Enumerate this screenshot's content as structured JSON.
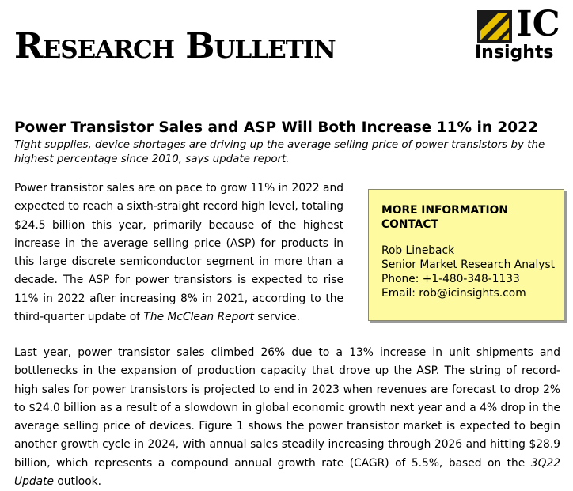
{
  "masthead": {
    "title": "Research Bulletin"
  },
  "logo": {
    "mark": "IC",
    "name": "Insights",
    "colors": {
      "gold": "#e8c000",
      "dark": "#1a1a1a"
    }
  },
  "article": {
    "headline": "Power Transistor Sales and ASP Will Both Increase 11% in 2022",
    "subhead": "Tight supplies, device shortages are driving up the average selling price of power transistors by the highest percentage since 2010, says update report.",
    "paragraph1_main": "Power transistor sales are on pace to grow 11% in 2022 and expected to reach a sixth-straight record high level, totaling $24.5 billion this year, primarily because of the highest increase in the average selling price (ASP) for products in this large discrete semiconductor segment in more than a decade.  The ASP for power transistors is expected to rise 11% in 2022 after increasing 8% in 2021, according to the third-quarter update of ",
    "paragraph1_publication": "The McClean Report",
    "paragraph1_end": " service.",
    "paragraph2_main": "Last year, power transistor sales climbed 26% due to a 13% increase in unit shipments and bottlenecks in the expansion of production capacity that drove up the ASP.  The string of record-high sales for power transistors is projected to end in 2023 when revenues are forecast to drop 2% to $24.0 billion as a result of a slowdown in global economic growth next year and a 4% drop in the average selling price of devices.  Figure 1 shows the power transistor market is expected to begin another growth cycle in 2024, with annual sales steadily increasing through 2026 and hitting $28.9 billion, which represents a compound annual growth rate (CAGR) of 5.5%, based on the ",
    "paragraph2_publication": "3Q22 Update",
    "paragraph2_end": " outlook."
  },
  "info_box": {
    "title_line1": "MORE INFORMATION",
    "title_line2": "CONTACT",
    "name": "Rob Lineback",
    "role": "Senior Market Research Analyst",
    "phone": "Phone:  +1-480-348-1133",
    "email": "Email:  rob@icinsights.com",
    "background": "#fdfaa0"
  }
}
